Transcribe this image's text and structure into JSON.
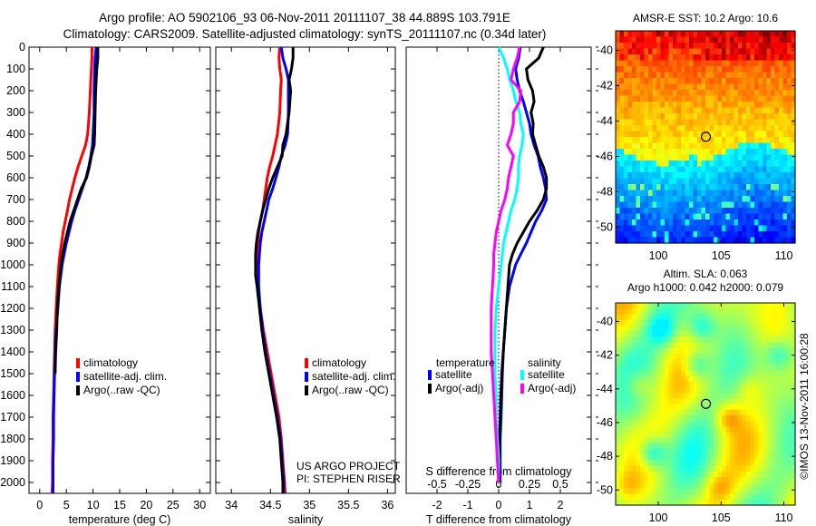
{
  "figure": {
    "title_line1": "Argo profile: AO 5902106_93 06-Nov-2011 20111107_38 44.889S 103.791E",
    "title_line2": "Climatology: CARS2009. Satellite-adjusted climatology: synTS_20111107.nc (0.34d later)",
    "credit_line1": "US ARGO PROJECT",
    "credit_line2": "PI: STEPHEN RISER",
    "copyright": "©IMOS 13-Nov-2011 16:00:28"
  },
  "colors": {
    "climatology": "#ff0000",
    "satellite": "#0000ff",
    "argo": "#000000",
    "sal_satellite": "#00ffff",
    "sal_argo": "#ff00ff"
  },
  "chart_data": [
    {
      "type": "line",
      "panel": "temperature",
      "xlabel": "temperature (deg C)",
      "ylabel": "",
      "xlim": [
        -2,
        32
      ],
      "ylim": [
        2050,
        0
      ],
      "xticks": [
        0,
        5,
        10,
        15,
        20,
        25,
        30
      ],
      "yticks": [
        0,
        100,
        200,
        300,
        400,
        500,
        600,
        700,
        800,
        900,
        1000,
        1100,
        1200,
        1300,
        1400,
        1500,
        1600,
        1700,
        1800,
        1900,
        2000
      ],
      "legend": [
        "climatology",
        "satellite-adj. clim.",
        "Argo(..raw -QC)"
      ],
      "legend_position": "center",
      "depth": [
        0,
        50,
        100,
        200,
        300,
        400,
        450,
        500,
        550,
        600,
        650,
        700,
        750,
        800,
        850,
        900,
        950,
        1000,
        1100,
        1200,
        1300,
        1400,
        1500,
        1600,
        1700,
        1800,
        1900,
        2000,
        2050
      ],
      "series": [
        {
          "name": "climatology",
          "color_key": "climatology",
          "values": [
            9.8,
            9.8,
            9.7,
            9.5,
            9.3,
            9.0,
            8.6,
            7.9,
            7.2,
            6.6,
            6.1,
            5.6,
            5.2,
            4.8,
            4.4,
            4.1,
            3.8,
            3.6,
            3.3,
            3.1,
            2.9,
            2.8,
            2.7,
            2.6,
            2.5,
            2.5,
            2.4,
            2.4,
            2.3
          ]
        },
        {
          "name": "satellite-adj. clim.",
          "color_key": "satellite",
          "values": [
            10.6,
            10.4,
            10.3,
            10.2,
            10.2,
            10.0,
            9.9,
            9.6,
            9.2,
            8.7,
            8.0,
            7.3,
            6.6,
            6.0,
            5.5,
            5.0,
            4.6,
            4.2,
            3.7,
            3.4,
            3.1,
            2.9,
            2.8,
            2.7,
            2.6,
            2.6,
            2.5,
            2.5,
            2.5
          ]
        },
        {
          "name": "Argo(..raw -QC)",
          "color_key": "argo",
          "values": [
            10.9,
            10.9,
            10.7,
            10.5,
            10.4,
            10.3,
            10.2,
            9.7,
            9.3,
            8.8,
            7.8,
            7.1,
            6.4,
            5.7,
            5.2,
            4.7,
            4.3,
            4.0,
            3.6,
            3.3,
            3.2,
            3.0,
            2.9,
            null,
            null,
            null,
            null,
            null,
            null
          ]
        }
      ]
    },
    {
      "type": "line",
      "panel": "salinity",
      "xlabel": "salinity",
      "xlim": [
        33.8,
        36.1
      ],
      "ylim": [
        2050,
        0
      ],
      "xticks": [
        34,
        34.5,
        35,
        35.5,
        36
      ],
      "legend": [
        "climatology",
        "satellite-adj. clim.",
        "Argo(..raw -QC)"
      ],
      "legend_position": "lower-right",
      "depth": [
        0,
        50,
        100,
        150,
        200,
        300,
        400,
        450,
        500,
        550,
        600,
        650,
        700,
        750,
        800,
        850,
        900,
        950,
        1000,
        1050,
        1100,
        1200,
        1300,
        1400,
        1500,
        1600,
        1700,
        1800,
        1900,
        2000,
        2050
      ],
      "series": [
        {
          "name": "climatology",
          "color_key": "climatology",
          "values": [
            34.62,
            34.61,
            34.62,
            34.64,
            34.63,
            34.62,
            34.59,
            34.56,
            34.53,
            34.49,
            34.46,
            34.44,
            34.42,
            34.4,
            34.37,
            34.35,
            34.34,
            34.33,
            34.33,
            34.33,
            34.34,
            34.37,
            34.41,
            34.46,
            34.51,
            34.56,
            34.61,
            34.64,
            34.66,
            34.68,
            34.69
          ]
        },
        {
          "name": "satellite-adj. clim.",
          "color_key": "satellite",
          "values": [
            34.64,
            34.66,
            34.7,
            34.73,
            34.73,
            34.73,
            34.72,
            34.69,
            34.64,
            34.61,
            34.57,
            34.53,
            34.48,
            34.45,
            34.42,
            34.39,
            34.37,
            34.36,
            34.35,
            34.35,
            34.35,
            34.37,
            34.4,
            34.44,
            34.49,
            34.54,
            34.59,
            34.63,
            34.65,
            34.67,
            34.67
          ]
        },
        {
          "name": "Argo(..raw -QC)",
          "color_key": "argo",
          "values": [
            34.79,
            34.79,
            34.77,
            34.74,
            34.76,
            34.74,
            34.7,
            34.66,
            34.65,
            34.59,
            34.53,
            34.48,
            34.44,
            34.4,
            34.37,
            34.34,
            34.32,
            34.31,
            34.31,
            34.31,
            34.33,
            34.36,
            34.39,
            34.43,
            34.48,
            34.53,
            34.58,
            34.62,
            34.64,
            34.66,
            34.66
          ]
        }
      ]
    },
    {
      "type": "line",
      "panel": "differences",
      "xlabel": "T difference from climatology",
      "top_axis_label": "S difference from climatology",
      "xlim": [
        -3,
        3
      ],
      "s_xlim": [
        -0.75,
        0.75
      ],
      "ylim": [
        2050,
        0
      ],
      "xticks": [
        -2,
        -1,
        0,
        1,
        2
      ],
      "s_xticks": [
        "-0.5",
        "-0.25",
        "0",
        "0.25",
        "0.5"
      ],
      "s_xtick_values": [
        -0.5,
        -0.25,
        0,
        0.25,
        0.5
      ],
      "zero_line": "dotted",
      "legend_groups": [
        {
          "heading": "temperature",
          "items": [
            "satellite",
            "Argo(-adj)"
          ]
        },
        {
          "heading": "salinity",
          "items": [
            "satellite",
            "Argo(-adj)"
          ]
        }
      ],
      "legend_position": "lower-center",
      "depth": [
        0,
        50,
        100,
        150,
        200,
        250,
        300,
        350,
        400,
        450,
        500,
        550,
        600,
        650,
        700,
        750,
        800,
        850,
        900,
        950,
        1000,
        1100,
        1200,
        1300,
        1400,
        1500,
        1600,
        1700,
        1800,
        1900,
        2000
      ],
      "series": [
        {
          "name": "temperature satellite",
          "axis": "T",
          "color_key": "satellite",
          "values": [
            0.7,
            0.65,
            0.55,
            0.6,
            0.68,
            0.8,
            0.9,
            1.0,
            1.05,
            1.15,
            1.28,
            1.35,
            1.45,
            1.52,
            1.55,
            1.4,
            1.2,
            1.05,
            0.9,
            0.72,
            0.55,
            0.35,
            0.25,
            0.2,
            0.15,
            0.12,
            0.1,
            0.08,
            0.05,
            0.05,
            0.05
          ]
        },
        {
          "name": "temperature Argo(-adj)",
          "axis": "T",
          "color_key": "argo",
          "values": [
            1.45,
            1.3,
            0.9,
            0.95,
            1.1,
            1.15,
            1.05,
            1.12,
            1.1,
            1.2,
            1.3,
            1.45,
            1.55,
            1.55,
            1.45,
            1.25,
            1.0,
            0.8,
            0.6,
            0.45,
            0.35,
            0.3,
            0.25,
            0.2,
            0.15,
            0.1,
            0.07,
            0.05,
            0.03,
            0.02,
            0.02
          ]
        },
        {
          "name": "salinity satellite",
          "axis": "S",
          "color_key": "sal_satellite",
          "values": [
            0.0,
            0.04,
            0.07,
            0.09,
            0.12,
            0.14,
            0.17,
            0.18,
            0.2,
            0.19,
            0.17,
            0.16,
            0.16,
            0.15,
            0.13,
            0.1,
            0.08,
            0.06,
            0.04,
            0.03,
            0.02,
            0.0,
            -0.02,
            -0.03,
            -0.03,
            -0.03,
            -0.02,
            -0.02,
            -0.01,
            0.0,
            0.0
          ]
        },
        {
          "name": "salinity Argo(-adj)",
          "axis": "S",
          "color_key": "sal_argo",
          "values": [
            0.17,
            0.15,
            0.12,
            0.1,
            0.18,
            0.17,
            0.12,
            0.12,
            0.1,
            0.07,
            0.12,
            0.1,
            0.08,
            0.07,
            0.05,
            0.02,
            0.0,
            -0.02,
            -0.03,
            -0.04,
            -0.04,
            -0.05,
            -0.06,
            -0.06,
            -0.06,
            -0.05,
            -0.04,
            -0.03,
            -0.02,
            -0.01,
            0.0
          ]
        }
      ]
    },
    {
      "type": "heatmap",
      "panel": "sst-map",
      "title": "AMSR-E SST: 10.2 Argo: 10.6",
      "xlim": [
        96.6,
        110.9
      ],
      "ylim": [
        -50.9,
        -38.9
      ],
      "xticks": [
        100,
        105,
        110
      ],
      "yticks": [
        -40,
        -42,
        -44,
        -46,
        -48,
        -50
      ],
      "colormap": "jet",
      "marker": {
        "lon": 103.791,
        "lat": -44.889,
        "shape": "circle"
      },
      "description": "SST field, warm (red/orange) north, cold (blue) south, front near 46S"
    },
    {
      "type": "heatmap",
      "panel": "sla-map",
      "title_line1": "Altim. SLA: 0.063",
      "title_line2": "Argo h1000: 0.042 h2000: 0.079",
      "xlim": [
        96.6,
        110.9
      ],
      "ylim": [
        -50.9,
        -38.9
      ],
      "xticks": [
        100,
        105,
        110
      ],
      "yticks": [
        -40,
        -42,
        -44,
        -46,
        -48,
        -50
      ],
      "colormap": "jet",
      "marker": {
        "lon": 103.791,
        "lat": -44.889,
        "shape": "circle"
      },
      "description": "Sea level anomaly field, mostly green/yellow with cyan lows"
    }
  ]
}
